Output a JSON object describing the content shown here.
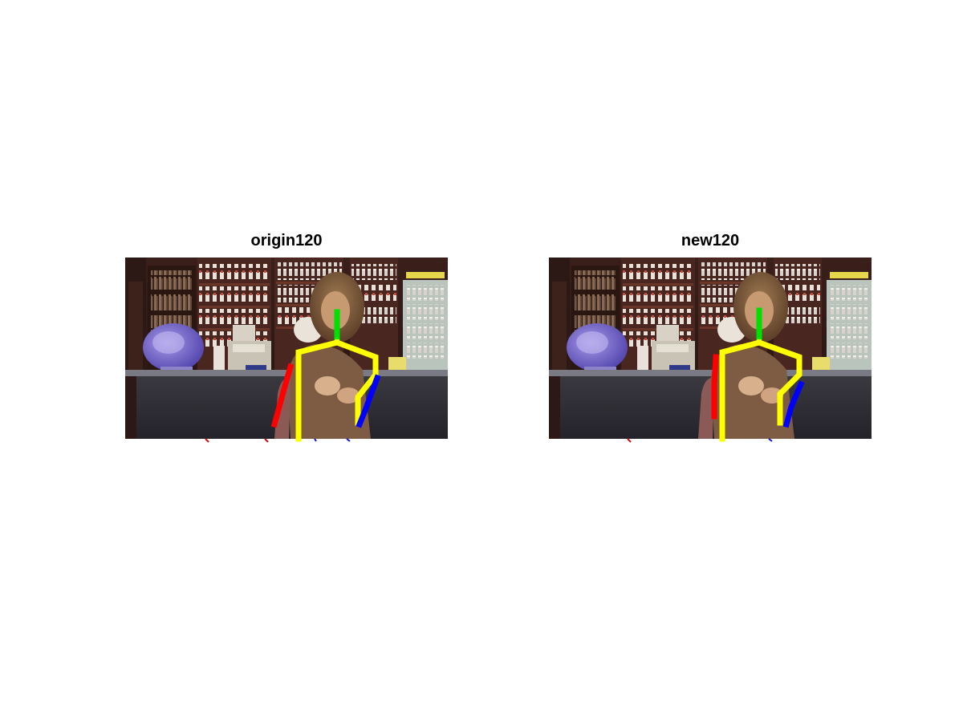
{
  "panels": [
    {
      "title": "origin120"
    },
    {
      "title": "new120"
    }
  ],
  "skeleton_colors": {
    "head": "#00e000",
    "torso_and_left_arm": "#ffff00",
    "right_arm": "#ff0000",
    "left_forearm": "#0000ff"
  }
}
